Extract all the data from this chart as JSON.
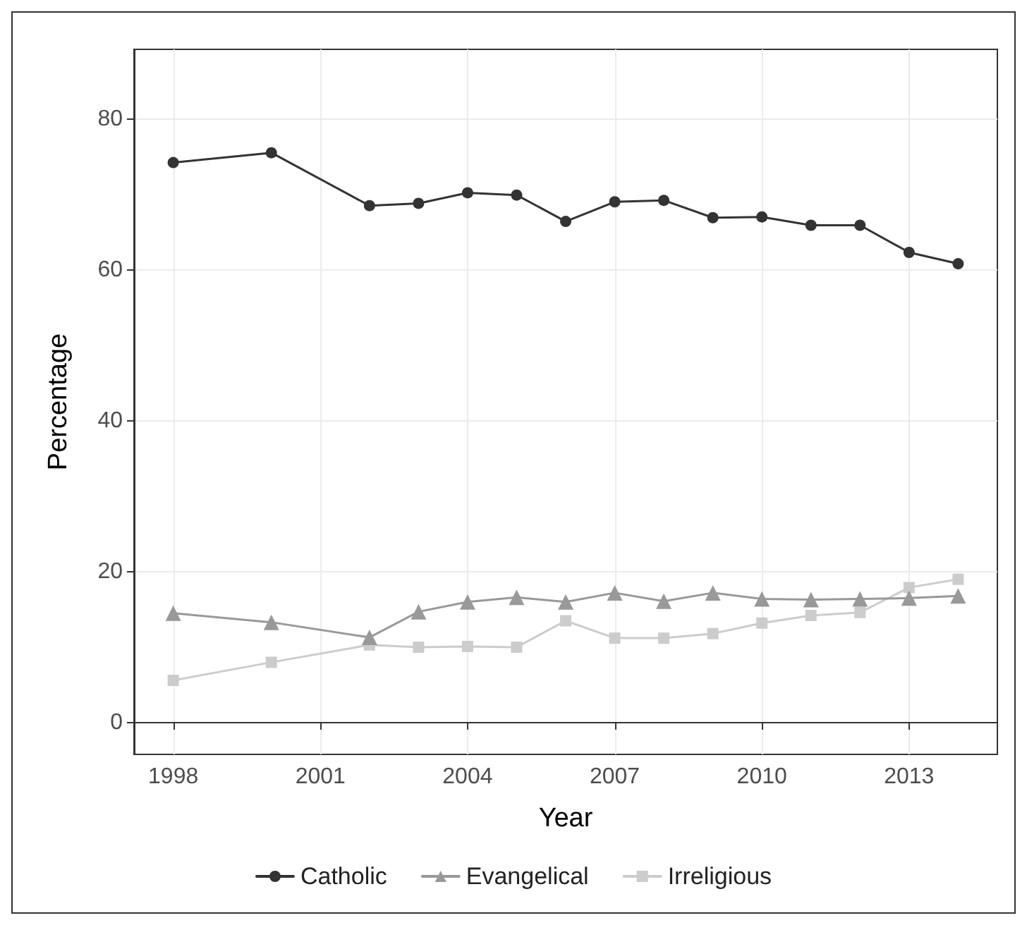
{
  "chart_data": {
    "type": "line",
    "xlabel": "Year",
    "ylabel": "Percentage",
    "x": [
      1998,
      2000,
      2002,
      2003,
      2004,
      2005,
      2006,
      2007,
      2008,
      2009,
      2010,
      2011,
      2012,
      2013,
      2014
    ],
    "series": [
      {
        "name": "Catholic",
        "color": "#333333",
        "marker": "circle",
        "values": [
          74.2,
          75.5,
          68.5,
          68.8,
          70.2,
          69.9,
          66.4,
          69.0,
          69.2,
          66.9,
          67.0,
          65.9,
          65.9,
          62.3,
          60.8
        ]
      },
      {
        "name": "Evangelical",
        "color": "#999999",
        "marker": "triangle",
        "values": [
          14.5,
          13.3,
          11.3,
          14.7,
          16.0,
          16.6,
          16.0,
          17.2,
          16.1,
          17.2,
          16.4,
          16.3,
          16.4,
          16.5,
          16.8
        ]
      },
      {
        "name": "Irreligious",
        "color": "#cccccc",
        "marker": "square",
        "values": [
          5.6,
          8.0,
          10.3,
          10.0,
          10.1,
          10.0,
          13.5,
          11.2,
          11.2,
          11.8,
          13.2,
          14.2,
          14.6,
          17.9,
          19.0
        ]
      }
    ],
    "xlim": [
      1997.2,
      2014.8
    ],
    "xticks": [
      1998,
      2001,
      2004,
      2007,
      2010,
      2013
    ],
    "ylim": [
      -4.2,
      89.2
    ],
    "yticks": [
      0,
      20,
      40,
      60,
      80
    ],
    "grid": true,
    "legend": "bottom",
    "line_style": "solid"
  }
}
